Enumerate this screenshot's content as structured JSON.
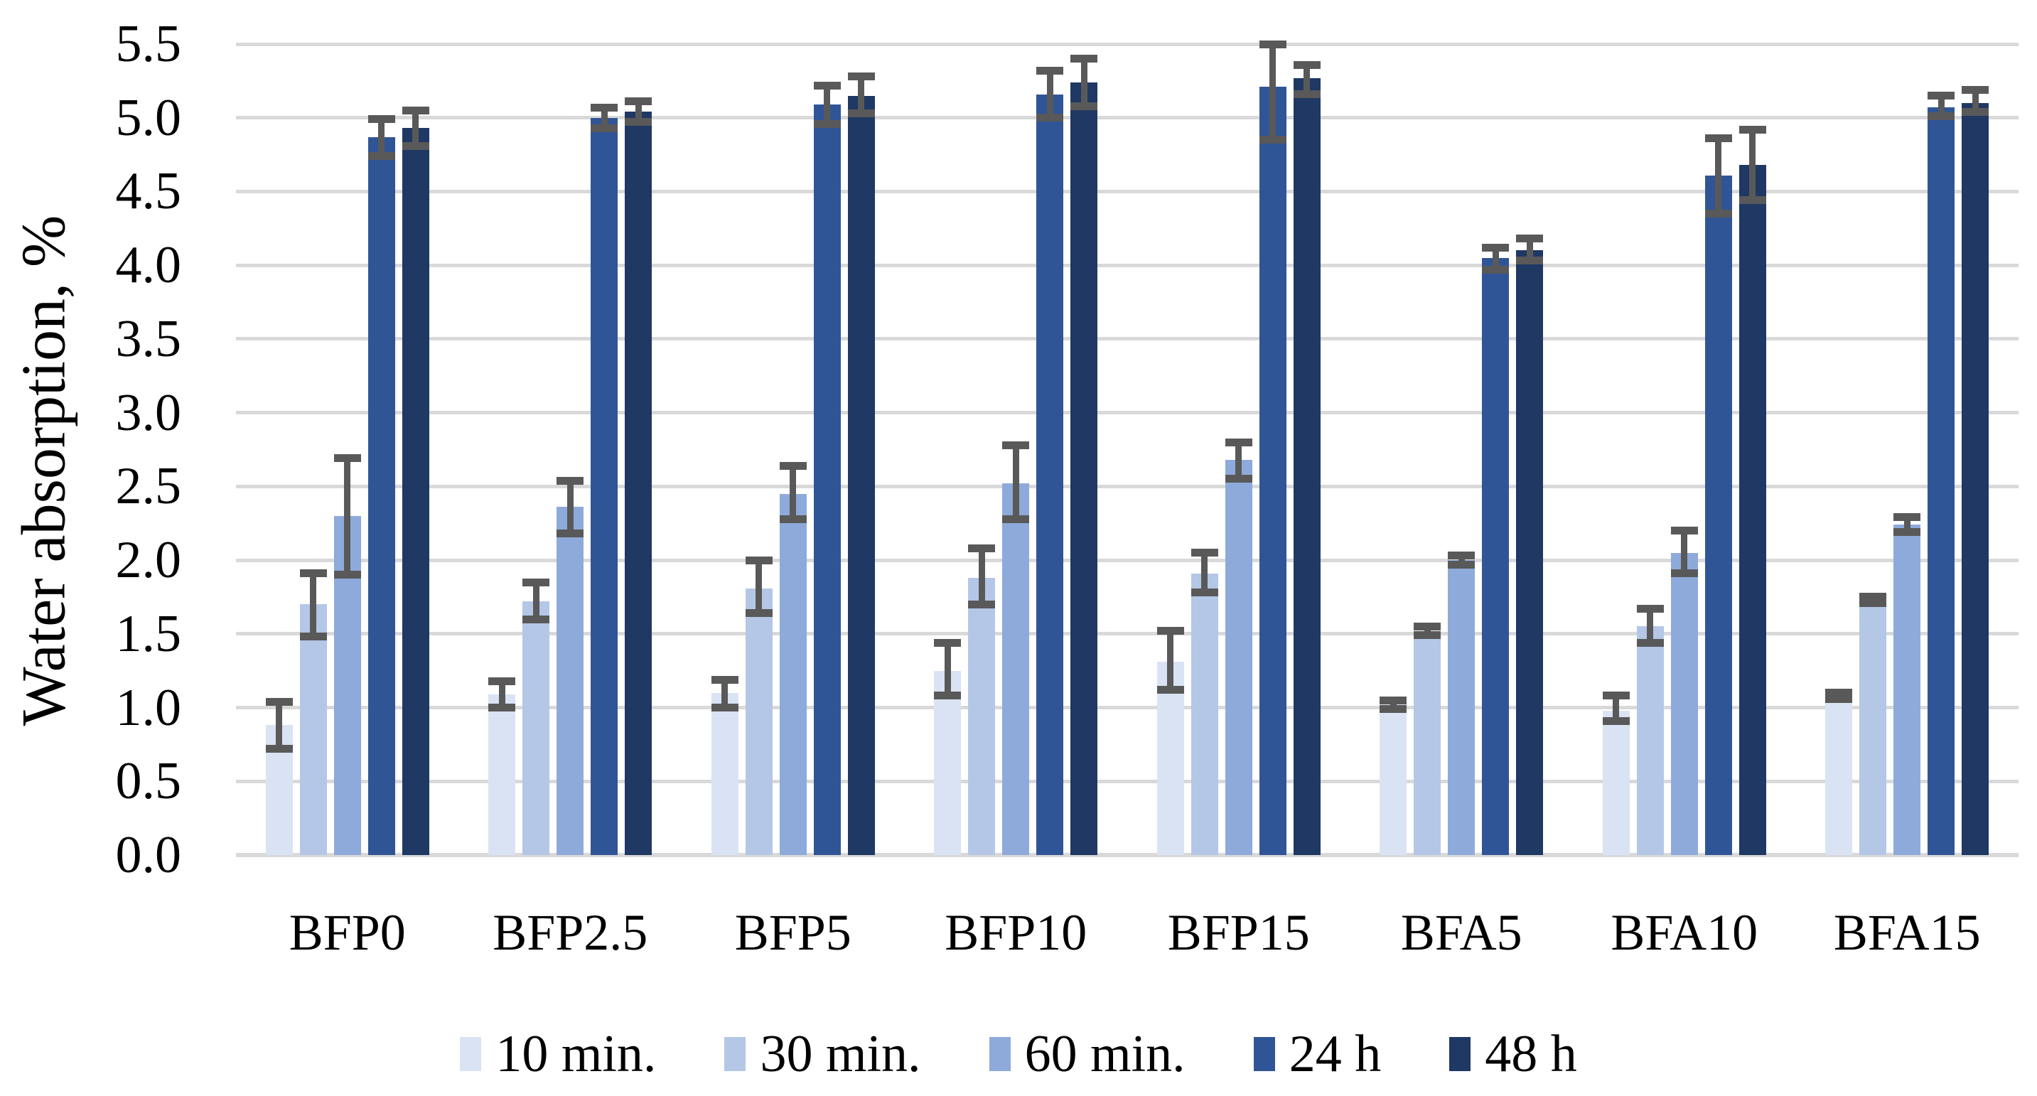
{
  "chart_data": {
    "type": "bar",
    "title": "",
    "ylabel": "Water absorption, %",
    "xlabel": "",
    "categories": [
      "BFP0",
      "BFP2.5",
      "BFP5",
      "BFP10",
      "BFP15",
      "BFA5",
      "BFA10",
      "BFA15"
    ],
    "series": [
      {
        "name": "10 min.",
        "color": "#DAE3F3",
        "values": [
          0.88,
          1.09,
          1.1,
          1.25,
          1.31,
          1.02,
          0.98,
          1.08
        ],
        "err_plus": [
          0.16,
          0.09,
          0.09,
          0.19,
          0.21,
          0.03,
          0.1,
          0.02
        ],
        "err_minus": [
          0.16,
          0.09,
          0.1,
          0.17,
          0.19,
          0.03,
          0.07,
          0.02
        ]
      },
      {
        "name": "30 min.",
        "color": "#B4C7E7",
        "values": [
          1.7,
          1.72,
          1.81,
          1.88,
          1.91,
          1.52,
          1.55,
          1.73
        ],
        "err_plus": [
          0.21,
          0.13,
          0.19,
          0.2,
          0.14,
          0.03,
          0.12,
          0.02
        ],
        "err_minus": [
          0.22,
          0.12,
          0.17,
          0.18,
          0.13,
          0.03,
          0.11,
          0.02
        ]
      },
      {
        "name": "60 min.",
        "color": "#8EAADB",
        "values": [
          2.3,
          2.36,
          2.45,
          2.52,
          2.68,
          2.0,
          2.05,
          2.24
        ],
        "err_plus": [
          0.39,
          0.18,
          0.19,
          0.26,
          0.12,
          0.03,
          0.15,
          0.05
        ],
        "err_minus": [
          0.4,
          0.18,
          0.17,
          0.24,
          0.13,
          0.03,
          0.14,
          0.05
        ]
      },
      {
        "name": "24 h",
        "color": "#2F5597",
        "values": [
          4.87,
          5.0,
          5.09,
          5.16,
          5.21,
          4.05,
          4.61,
          5.07
        ],
        "err_plus": [
          0.12,
          0.07,
          0.13,
          0.16,
          0.29,
          0.07,
          0.25,
          0.08
        ],
        "err_minus": [
          0.13,
          0.07,
          0.13,
          0.16,
          0.36,
          0.08,
          0.26,
          0.06
        ]
      },
      {
        "name": "48 h",
        "color": "#1F3864",
        "values": [
          4.93,
          5.04,
          5.15,
          5.24,
          5.27,
          4.1,
          4.68,
          5.1
        ],
        "err_plus": [
          0.12,
          0.07,
          0.13,
          0.16,
          0.09,
          0.08,
          0.24,
          0.09
        ],
        "err_minus": [
          0.12,
          0.07,
          0.12,
          0.16,
          0.11,
          0.07,
          0.24,
          0.06
        ]
      }
    ],
    "ylim": [
      0.0,
      5.5
    ],
    "ytick_step": 0.5,
    "ytick_labels": [
      "0.0",
      "0.5",
      "1.0",
      "1.5",
      "2.0",
      "2.5",
      "3.0",
      "3.5",
      "4.0",
      "4.5",
      "5.0",
      "5.5"
    ],
    "grid": true,
    "legend_position": "bottom",
    "error_bars": true
  },
  "colors": {
    "gridline": "#D9D9D9",
    "error_bar": "#595959",
    "text": "#000000",
    "background": "#FFFFFF"
  }
}
